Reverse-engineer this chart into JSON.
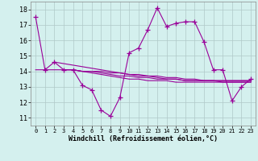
{
  "xlabel": "Windchill (Refroidissement éolien,°C)",
  "ylabel": "",
  "bg_color": "#d4f0ee",
  "grid_color": "#b0c8c8",
  "line_color": "#990099",
  "xlim": [
    -0.5,
    23.5
  ],
  "ylim": [
    10.5,
    18.5
  ],
  "yticks": [
    11,
    12,
    13,
    14,
    15,
    16,
    17,
    18
  ],
  "xticks": [
    0,
    1,
    2,
    3,
    4,
    5,
    6,
    7,
    8,
    9,
    10,
    11,
    12,
    13,
    14,
    15,
    16,
    17,
    18,
    19,
    20,
    21,
    22,
    23
  ],
  "main_x": [
    0,
    1,
    2,
    3,
    4,
    5,
    6,
    7,
    8,
    9,
    10,
    11,
    12,
    13,
    14,
    15,
    16,
    17,
    18,
    19,
    20,
    21,
    22,
    23
  ],
  "main_y": [
    17.5,
    14.1,
    14.6,
    14.1,
    14.1,
    13.1,
    12.8,
    11.5,
    11.1,
    12.3,
    15.2,
    15.5,
    16.7,
    18.1,
    16.9,
    17.1,
    17.2,
    17.2,
    15.9,
    14.1,
    14.1,
    12.1,
    13.0,
    13.5
  ],
  "line2_x": [
    0,
    1,
    2,
    3,
    4,
    5,
    6,
    7,
    8,
    9,
    10,
    11,
    12,
    13,
    14,
    15,
    16,
    17,
    18,
    19,
    20,
    21,
    22,
    23
  ],
  "line2_y": [
    14.1,
    14.1,
    14.1,
    14.1,
    14.1,
    14.0,
    14.0,
    14.0,
    13.9,
    13.9,
    13.8,
    13.8,
    13.7,
    13.7,
    13.6,
    13.6,
    13.5,
    13.5,
    13.4,
    13.4,
    13.3,
    13.3,
    13.3,
    13.3
  ],
  "line3_x": [
    2,
    3,
    4,
    5,
    6,
    7,
    8,
    9,
    10,
    11,
    12,
    13,
    14,
    15,
    16,
    17,
    18,
    19,
    20,
    21,
    22,
    23
  ],
  "line3_y": [
    14.6,
    14.5,
    14.4,
    14.3,
    14.2,
    14.1,
    14.0,
    13.9,
    13.8,
    13.7,
    13.7,
    13.6,
    13.5,
    13.5,
    13.4,
    13.4,
    13.4,
    13.4,
    13.4,
    13.4,
    13.4,
    13.4
  ],
  "line4_x": [
    3,
    4,
    5,
    6,
    7,
    8,
    9,
    10,
    11,
    12,
    13,
    14,
    15,
    16,
    17,
    18,
    19,
    20,
    21,
    22,
    23
  ],
  "line4_y": [
    14.1,
    14.1,
    14.0,
    14.0,
    13.9,
    13.8,
    13.7,
    13.7,
    13.6,
    13.6,
    13.5,
    13.5,
    13.5,
    13.4,
    13.4,
    13.4,
    13.4,
    13.4,
    13.4,
    13.4,
    13.4
  ],
  "line5_x": [
    4,
    5,
    6,
    7,
    8,
    9,
    10,
    11,
    12,
    13,
    14,
    15,
    16,
    17,
    18,
    19,
    20,
    21,
    22,
    23
  ],
  "line5_y": [
    14.1,
    14.0,
    13.9,
    13.8,
    13.7,
    13.6,
    13.5,
    13.5,
    13.4,
    13.4,
    13.4,
    13.3,
    13.3,
    13.3,
    13.3,
    13.3,
    13.3,
    13.3,
    13.3,
    13.3
  ]
}
